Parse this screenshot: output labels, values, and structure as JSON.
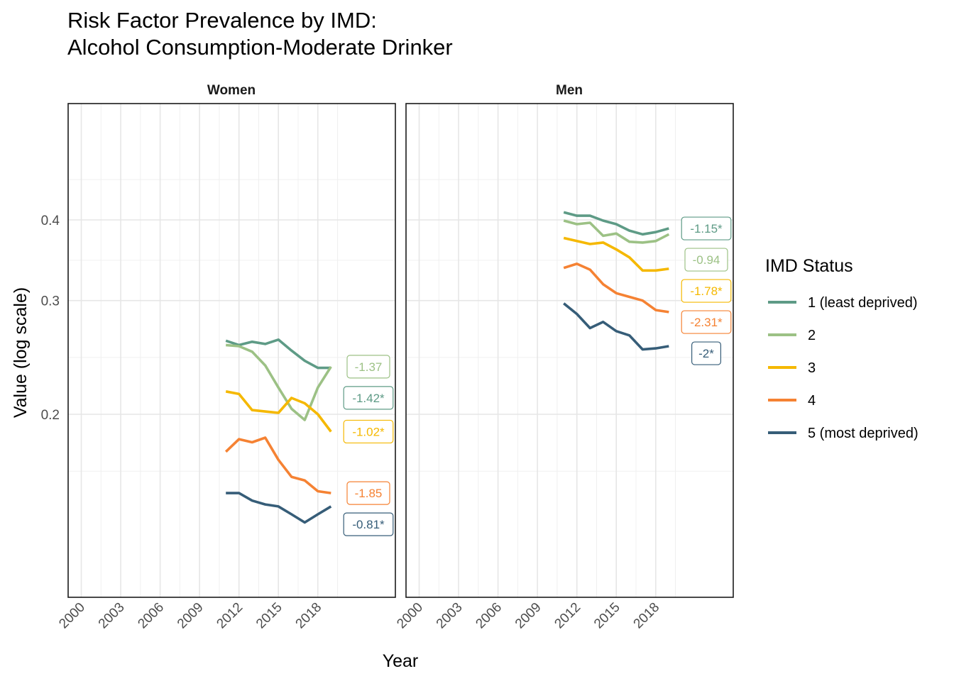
{
  "chart_data": {
    "type": "line",
    "title": [
      "Risk Factor Prevalence by IMD:",
      "Alcohol Consumption-Moderate Drinker"
    ],
    "xlabel": "Year",
    "ylabel": "Value (log scale)",
    "y_scale": "log",
    "grid": true,
    "x_ticks": [
      "2000",
      "2003",
      "2006",
      "2009",
      "2012",
      "2015",
      "2018"
    ],
    "y_ticks": [
      "0.2",
      "0.3",
      "0.4"
    ],
    "legend": {
      "title": "IMD Status",
      "placement": "right",
      "entries": [
        {
          "label": "1 (least deprived)",
          "color": "#5e9b86"
        },
        {
          "label": "2",
          "color": "#9cc185"
        },
        {
          "label": "3",
          "color": "#f5b800"
        },
        {
          "label": "4",
          "color": "#f58233"
        },
        {
          "label": "5 (most deprived)",
          "color": "#365d78"
        }
      ]
    },
    "x": [
      2011,
      2012,
      2013,
      2014,
      2015,
      2016,
      2017,
      2018,
      2019
    ],
    "panels": [
      {
        "name": "Women",
        "series": [
          {
            "name": "1 (least deprived)",
            "values": [
              0.26,
              0.256,
              0.259,
              0.257,
              0.261,
              0.251,
              0.242,
              0.236,
              0.236
            ],
            "label": "-1.42*"
          },
          {
            "name": "2",
            "values": [
              0.256,
              0.255,
              0.25,
              0.238,
              0.22,
              0.204,
              0.196,
              0.22,
              0.237
            ],
            "label": "-1.37"
          },
          {
            "name": "3",
            "values": [
              0.217,
              0.215,
              0.203,
              0.202,
              0.201,
              0.212,
              0.208,
              0.2,
              0.188
            ],
            "label": "-1.02*"
          },
          {
            "name": "4",
            "values": [
              0.175,
              0.183,
              0.181,
              0.184,
              0.17,
              0.16,
              0.158,
              0.152,
              0.151
            ],
            "label": "-1.85"
          },
          {
            "name": "5 (most deprived)",
            "values": [
              0.151,
              0.151,
              0.147,
              0.145,
              0.144,
              0.14,
              0.136,
              0.14,
              0.144
            ],
            "label": "-0.81*"
          }
        ]
      },
      {
        "name": "Men",
        "series": [
          {
            "name": "1 (least deprived)",
            "values": [
              0.411,
              0.406,
              0.406,
              0.399,
              0.394,
              0.385,
              0.38,
              0.383,
              0.388
            ],
            "label": "-1.15*"
          },
          {
            "name": "2",
            "values": [
              0.399,
              0.394,
              0.396,
              0.378,
              0.381,
              0.37,
              0.369,
              0.371,
              0.38
            ],
            "label": "-0.94"
          },
          {
            "name": "3",
            "values": [
              0.375,
              0.371,
              0.367,
              0.369,
              0.36,
              0.35,
              0.334,
              0.334,
              0.336
            ],
            "label": "-1.78*"
          },
          {
            "name": "4",
            "values": [
              0.337,
              0.342,
              0.335,
              0.318,
              0.308,
              0.304,
              0.3,
              0.29,
              0.288
            ],
            "label": "-2.31*"
          },
          {
            "name": "5 (most deprived)",
            "values": [
              0.297,
              0.286,
              0.272,
              0.278,
              0.269,
              0.265,
              0.252,
              0.253,
              0.255
            ],
            "label": "-2*"
          }
        ]
      }
    ]
  }
}
